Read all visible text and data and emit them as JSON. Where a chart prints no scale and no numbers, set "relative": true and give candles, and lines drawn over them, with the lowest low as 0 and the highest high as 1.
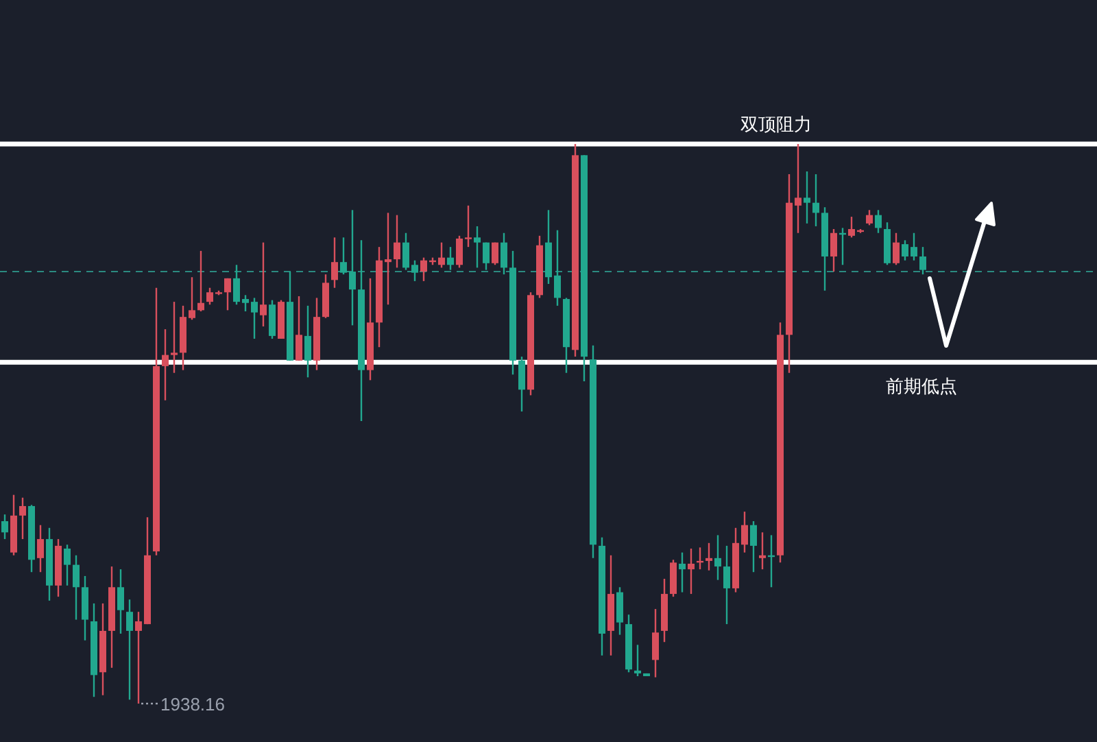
{
  "chart_data": {
    "type": "candlestick",
    "relative": true,
    "categories": [
      null,
      null,
      null,
      null,
      null,
      null,
      null,
      null,
      null,
      null,
      null,
      null,
      null,
      null,
      null,
      null,
      null,
      null,
      null,
      null,
      null,
      null,
      null,
      null,
      null,
      null,
      null,
      null,
      null,
      null,
      null,
      null,
      null,
      null,
      null,
      null,
      null,
      null,
      null,
      null,
      null,
      null,
      null,
      null,
      null,
      null,
      null,
      null,
      null,
      null,
      null,
      null,
      null,
      null,
      null,
      null,
      null,
      null,
      null,
      null,
      null,
      null,
      null,
      null,
      null,
      null,
      null,
      null,
      null,
      null,
      null,
      null,
      null,
      null,
      null,
      null,
      null,
      null,
      null,
      null,
      null,
      null,
      null,
      null,
      null,
      null,
      null,
      null,
      null,
      null,
      null,
      null,
      null,
      null,
      null,
      null,
      null,
      null,
      null,
      null,
      null,
      null,
      null,
      null
    ],
    "ohlc": [
      [
        0.326,
        0.338,
        0.294,
        0.306
      ],
      [
        0.27,
        0.373,
        0.265,
        0.336
      ],
      [
        0.336,
        0.368,
        0.294,
        0.353
      ],
      [
        0.353,
        0.355,
        0.235,
        0.257
      ],
      [
        0.26,
        0.319,
        0.235,
        0.294
      ],
      [
        0.294,
        0.314,
        0.184,
        0.211
      ],
      [
        0.211,
        0.294,
        0.191,
        0.282
      ],
      [
        0.277,
        0.284,
        0.211,
        0.248
      ],
      [
        0.248,
        0.265,
        0.15,
        0.208
      ],
      [
        0.208,
        0.228,
        0.113,
        0.15
      ],
      [
        0.147,
        0.179,
        0.012,
        0.051
      ],
      [
        0.056,
        0.179,
        0.015,
        0.13
      ],
      [
        0.13,
        0.245,
        0.064,
        0.208
      ],
      [
        0.208,
        0.24,
        0.125,
        0.167
      ],
      [
        0.164,
        0.186,
        0.007,
        0.13
      ],
      [
        0.13,
        0.164,
        0,
        0.147
      ],
      [
        0.142,
        0.333,
        0.142,
        0.265
      ],
      [
        0.272,
        0.743,
        0.265,
        0.603
      ],
      [
        0.603,
        0.669,
        0.542,
        0.623
      ],
      [
        0.623,
        0.718,
        0.591,
        0.627
      ],
      [
        0.627,
        0.711,
        0.596,
        0.691
      ],
      [
        0.689,
        0.762,
        0.686,
        0.703
      ],
      [
        0.703,
        0.809,
        0.701,
        0.716
      ],
      [
        0.718,
        0.743,
        0.713,
        0.735
      ],
      [
        0.733,
        0.738,
        0.73,
        0.735
      ],
      [
        0.735,
        0.76,
        0.703,
        0.76
      ],
      [
        0.76,
        0.784,
        0.713,
        0.718
      ],
      [
        0.723,
        0.73,
        0.701,
        0.716
      ],
      [
        0.718,
        0.725,
        0.652,
        0.699
      ],
      [
        0.694,
        0.824,
        0.674,
        0.713
      ],
      [
        0.713,
        0.721,
        0.652,
        0.657
      ],
      [
        0.652,
        0.721,
        0.652,
        0.718
      ],
      [
        0.718,
        0.772,
        0.613,
        0.613
      ],
      [
        0.613,
        0.728,
        0.613,
        0.659
      ],
      [
        0.657,
        0.711,
        0.583,
        0.613
      ],
      [
        0.613,
        0.725,
        0.596,
        0.691
      ],
      [
        0.691,
        0.767,
        0.689,
        0.752
      ],
      [
        0.757,
        0.833,
        0.743,
        0.789
      ],
      [
        0.789,
        0.833,
        0.767,
        0.77
      ],
      [
        0.772,
        0.882,
        0.676,
        0.74
      ],
      [
        0.74,
        0.828,
        0.505,
        0.596
      ],
      [
        0.596,
        0.76,
        0.578,
        0.681
      ],
      [
        0.681,
        0.816,
        0.637,
        0.792
      ],
      [
        0.789,
        0.877,
        0.713,
        0.794
      ],
      [
        0.794,
        0.873,
        0.779,
        0.824
      ],
      [
        0.824,
        0.841,
        0.775,
        0.779
      ],
      [
        0.784,
        0.792,
        0.755,
        0.77
      ],
      [
        0.772,
        0.797,
        0.755,
        0.792
      ],
      [
        0.789,
        0.797,
        0.784,
        0.792
      ],
      [
        0.784,
        0.824,
        0.779,
        0.797
      ],
      [
        0.797,
        0.816,
        0.775,
        0.784
      ],
      [
        0.784,
        0.836,
        0.779,
        0.831
      ],
      [
        0.831,
        0.89,
        0.816,
        0.833
      ],
      [
        0.833,
        0.853,
        0.779,
        0.824
      ],
      [
        0.824,
        0.824,
        0.775,
        0.787
      ],
      [
        0.787,
        0.824,
        0.784,
        0.824
      ],
      [
        0.824,
        0.841,
        0.767,
        0.779
      ],
      [
        0.779,
        0.809,
        0.588,
        0.613
      ],
      [
        0.613,
        0.62,
        0.522,
        0.561
      ],
      [
        0.561,
        0.735,
        0.551,
        0.73
      ],
      [
        0.73,
        0.836,
        0.725,
        0.819
      ],
      [
        0.824,
        0.882,
        0.75,
        0.762
      ],
      [
        0.765,
        0.846,
        0.711,
        0.725
      ],
      [
        0.723,
        0.725,
        0.591,
        0.637
      ],
      [
        0.632,
        1,
        0.62,
        0.98
      ],
      [
        0.98,
        0.98,
        0.576,
        0.62
      ],
      [
        0.615,
        0.64,
        0.26,
        0.284
      ],
      [
        0.282,
        0.297,
        0.086,
        0.125
      ],
      [
        0.13,
        0.265,
        0.086,
        0.196
      ],
      [
        0.199,
        0.208,
        0.123,
        0.145
      ],
      [
        0.142,
        0.159,
        0.056,
        0.061
      ],
      [
        0.059,
        0.105,
        0.049,
        0.054
      ],
      [
        0.054,
        0.054,
        0.049,
        0.049
      ],
      [
        0.078,
        0.169,
        0.047,
        0.127
      ],
      [
        0.13,
        0.223,
        0.11,
        0.196
      ],
      [
        0.196,
        0.257,
        0.191,
        0.252
      ],
      [
        0.25,
        0.27,
        0.199,
        0.24
      ],
      [
        0.24,
        0.277,
        0.196,
        0.25
      ],
      [
        0.252,
        0.279,
        0.24,
        0.255
      ],
      [
        0.255,
        0.287,
        0.238,
        0.26
      ],
      [
        0.26,
        0.301,
        0.221,
        0.245
      ],
      [
        0.245,
        0.282,
        0.142,
        0.206
      ],
      [
        0.206,
        0.314,
        0.199,
        0.287
      ],
      [
        0.284,
        0.343,
        0.27,
        0.319
      ],
      [
        0.319,
        0.326,
        0.235,
        0.282
      ],
      [
        0.26,
        0.306,
        0.24,
        0.265
      ],
      [
        0.265,
        0.301,
        0.208,
        0.262
      ],
      [
        0.265,
        0.681,
        0.252,
        0.659
      ],
      [
        0.659,
        0.946,
        0.591,
        0.895
      ],
      [
        0.89,
        1,
        0.841,
        0.904
      ],
      [
        0.904,
        0.951,
        0.858,
        0.895
      ],
      [
        0.895,
        0.946,
        0.853,
        0.877
      ],
      [
        0.877,
        0.887,
        0.738,
        0.799
      ],
      [
        0.799,
        0.848,
        0.772,
        0.841
      ],
      [
        0.841,
        0.85,
        0.784,
        0.838
      ],
      [
        0.836,
        0.87,
        0.833,
        0.848
      ],
      [
        0.843,
        0.848,
        0.841,
        0.846
      ],
      [
        0.858,
        0.882,
        0.855,
        0.873
      ],
      [
        0.873,
        0.882,
        0.841,
        0.85
      ],
      [
        0.848,
        0.86,
        0.784,
        0.787
      ],
      [
        0.787,
        0.841,
        0.784,
        0.824
      ],
      [
        0.821,
        0.828,
        0.792,
        0.799
      ],
      [
        0.816,
        0.841,
        0.792,
        0.799
      ],
      [
        0.799,
        0.816,
        0.767,
        0.775
      ]
    ],
    "ref_lines": [
      {
        "axis": "y",
        "value": 1,
        "label": "双顶阻力",
        "color": "#ffffff"
      },
      {
        "axis": "y",
        "value": 0.61,
        "label": "前期低点",
        "color": "#ffffff"
      },
      {
        "axis": "y",
        "value": 0.772,
        "color": "#2b8a80",
        "line_style": "dashed"
      }
    ],
    "annotations": [
      "1938.16"
    ]
  }
}
